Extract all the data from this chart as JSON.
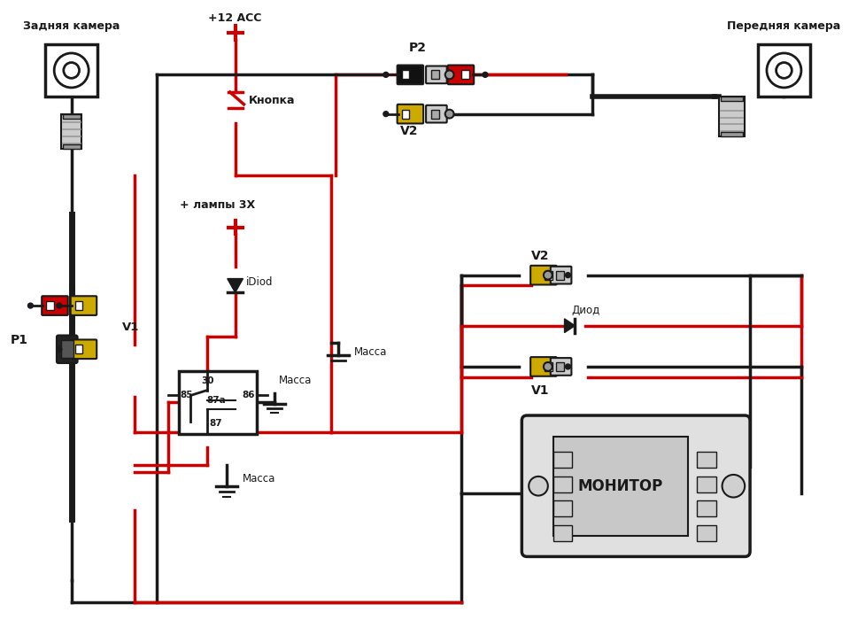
{
  "bg_color": "#ffffff",
  "BLACK": "#1a1a1a",
  "RED": "#cc0000",
  "YELLOW": "#ccaa00",
  "GRAY": "#999999",
  "LGRAY": "#cccccc",
  "DGRAY": "#555555",
  "figsize": [
    9.6,
    7.0
  ],
  "dpi": 100,
  "labels": {
    "rear_camera": "Задняя камера",
    "front_camera": "Передняя камера",
    "plus12acc": "+12 ACC",
    "button": "Кнопка",
    "lamp_plus": "+ лампы 3Х",
    "idiod": "iDiod",
    "massa1": "Масса",
    "massa2": "Масса",
    "massa3": "Масса",
    "diod": "Диод",
    "monitor": "МОНИТОР",
    "p1": "P1",
    "p2": "P2",
    "v1": "V1",
    "v2a": "V2",
    "v2b": "V2",
    "r30": "30",
    "r85": "85",
    "r86": "86",
    "r87a": "87a",
    "r87": "87"
  }
}
